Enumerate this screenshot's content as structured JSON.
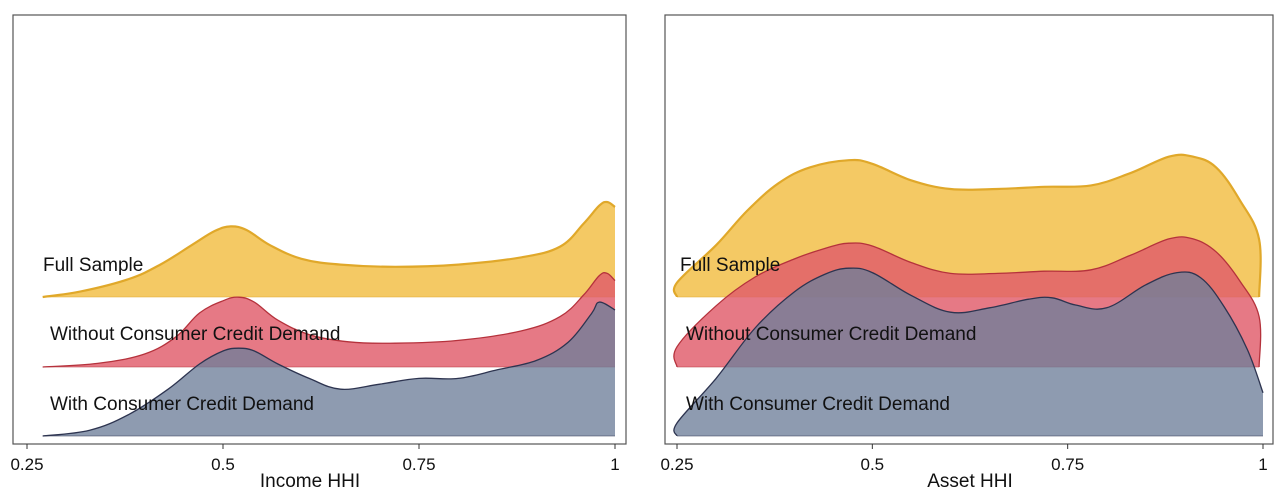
{
  "chart_data": [
    {
      "type": "area",
      "subtype": "ridgeline-density",
      "xlabel": "Income HHI",
      "xlim": [
        0.25,
        1
      ],
      "xticks": [
        0.25,
        0.5,
        0.75,
        1
      ],
      "xtick_labels": [
        "0.25",
        "0.5",
        "0.75",
        "1"
      ],
      "grid": false,
      "series": [
        {
          "name": "Full Sample",
          "color": "#f2c14e",
          "stroke": "#e0a82a",
          "x": [
            0.27,
            0.32,
            0.38,
            0.42,
            0.46,
            0.49,
            0.51,
            0.53,
            0.56,
            0.6,
            0.65,
            0.72,
            0.8,
            0.88,
            0.93,
            0.96,
            0.98,
            0.99,
            1.0
          ],
          "density": [
            0.0,
            0.08,
            0.25,
            0.45,
            0.72,
            0.92,
            0.98,
            0.93,
            0.72,
            0.53,
            0.45,
            0.42,
            0.45,
            0.55,
            0.7,
            1.02,
            1.27,
            1.32,
            1.25
          ]
        },
        {
          "name": "Without Consumer Credit Demand",
          "color": "#e05c6a",
          "stroke": "#b5323c",
          "x": [
            0.27,
            0.34,
            0.4,
            0.44,
            0.47,
            0.5,
            0.52,
            0.54,
            0.57,
            0.61,
            0.66,
            0.72,
            0.8,
            0.88,
            0.93,
            0.96,
            0.98,
            0.99,
            1.0
          ],
          "density": [
            0.0,
            0.05,
            0.18,
            0.42,
            0.75,
            0.92,
            0.97,
            0.9,
            0.65,
            0.45,
            0.35,
            0.33,
            0.37,
            0.5,
            0.7,
            1.0,
            1.27,
            1.3,
            1.2
          ]
        },
        {
          "name": "With Consumer Credit Demand",
          "color": "#6e7f9a",
          "stroke": "#2d3450",
          "x": [
            0.27,
            0.33,
            0.38,
            0.43,
            0.47,
            0.5,
            0.52,
            0.54,
            0.57,
            0.61,
            0.65,
            0.7,
            0.75,
            0.8,
            0.85,
            0.9,
            0.94,
            0.97,
            0.98,
            1.0
          ],
          "density": [
            0.0,
            0.08,
            0.3,
            0.65,
            1.0,
            1.18,
            1.22,
            1.18,
            1.0,
            0.8,
            0.65,
            0.72,
            0.8,
            0.8,
            0.92,
            1.05,
            1.3,
            1.7,
            1.86,
            1.75
          ]
        }
      ]
    },
    {
      "type": "area",
      "subtype": "ridgeline-density",
      "xlabel": "Asset HHI",
      "xlim": [
        0.25,
        1
      ],
      "xticks": [
        0.25,
        0.5,
        0.75,
        1
      ],
      "xtick_labels": [
        "0.25",
        "0.5",
        "0.75",
        "1"
      ],
      "grid": false,
      "series": [
        {
          "name": "Full Sample",
          "color": "#f2c14e",
          "stroke": "#e0a82a",
          "x": [
            0.25,
            0.25,
            0.3,
            0.34,
            0.38,
            0.42,
            0.47,
            0.5,
            0.55,
            0.6,
            0.66,
            0.72,
            0.78,
            0.83,
            0.88,
            0.91,
            0.94,
            0.97,
            0.995,
            0.995
          ],
          "density": [
            0.0,
            0.2,
            0.72,
            1.2,
            1.58,
            1.8,
            1.9,
            1.85,
            1.62,
            1.5,
            1.5,
            1.53,
            1.55,
            1.72,
            1.95,
            1.95,
            1.8,
            1.35,
            0.8,
            0.0
          ]
        },
        {
          "name": "Without Consumer Credit Demand",
          "color": "#e05c6a",
          "stroke": "#b5323c",
          "x": [
            0.25,
            0.25,
            0.3,
            0.35,
            0.4,
            0.44,
            0.47,
            0.5,
            0.55,
            0.6,
            0.66,
            0.72,
            0.78,
            0.83,
            0.88,
            0.91,
            0.94,
            0.97,
            0.995,
            0.995
          ],
          "density": [
            0.0,
            0.28,
            0.85,
            1.25,
            1.5,
            1.65,
            1.72,
            1.68,
            1.45,
            1.3,
            1.3,
            1.33,
            1.35,
            1.55,
            1.78,
            1.78,
            1.6,
            1.2,
            0.7,
            0.0
          ]
        },
        {
          "name": "With Consumer Credit Demand",
          "color": "#6e7f9a",
          "stroke": "#2d3450",
          "x": [
            0.25,
            0.25,
            0.3,
            0.35,
            0.4,
            0.44,
            0.47,
            0.5,
            0.55,
            0.6,
            0.65,
            0.7,
            0.73,
            0.76,
            0.8,
            0.85,
            0.89,
            0.92,
            0.95,
            0.98,
            1.0
          ],
          "density": [
            0.0,
            0.18,
            0.8,
            1.5,
            2.0,
            2.25,
            2.33,
            2.27,
            1.95,
            1.72,
            1.78,
            1.9,
            1.92,
            1.82,
            1.78,
            2.1,
            2.27,
            2.2,
            1.8,
            1.2,
            0.6
          ]
        }
      ]
    }
  ]
}
